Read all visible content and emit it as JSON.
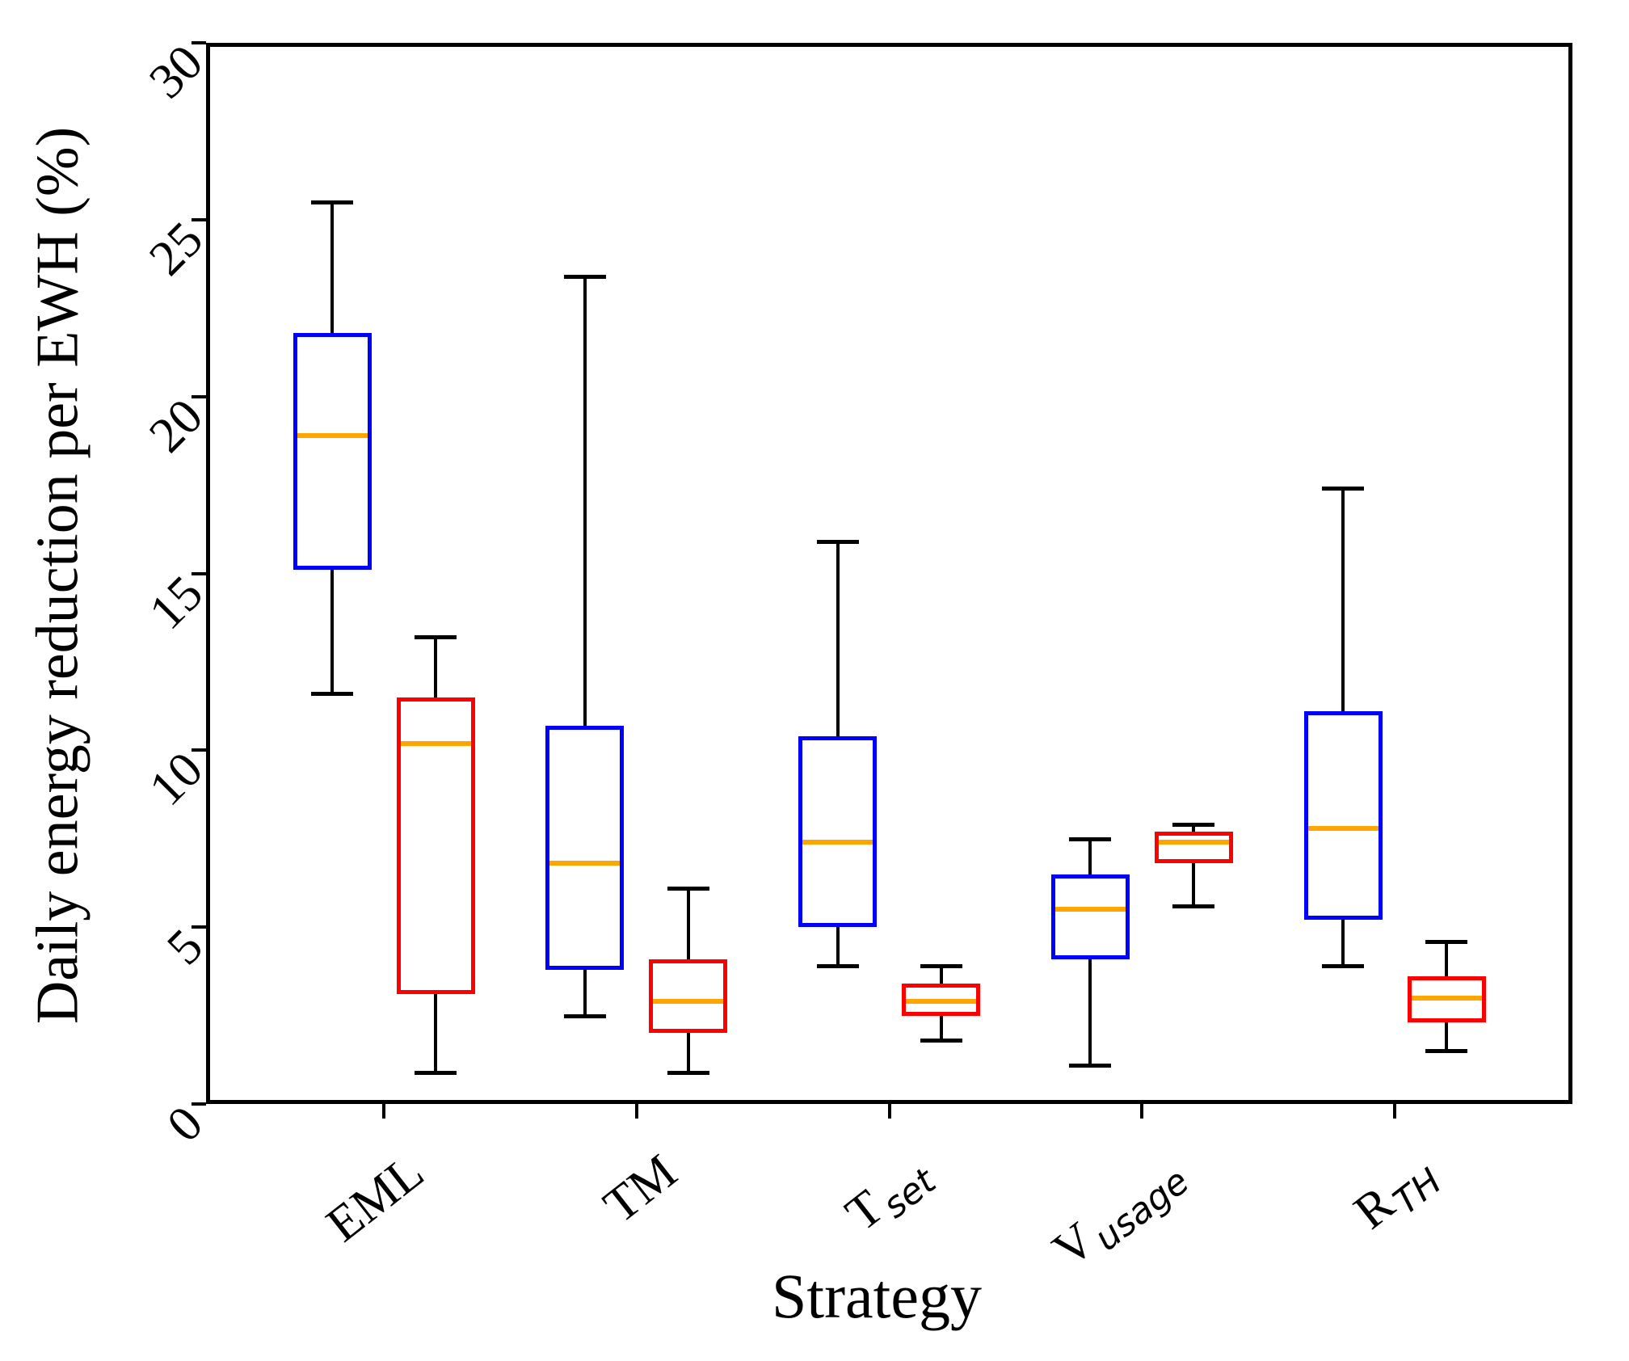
{
  "figure": {
    "background": "#FFFFFF",
    "axis_color": "#000000"
  },
  "chart_data": {
    "type": "boxplot",
    "title": "",
    "xlabel": "Strategy",
    "ylabel": "Daily energy reduction per EWH (%)",
    "ylim": [
      0,
      30
    ],
    "yticks": [
      0,
      5,
      10,
      15,
      20,
      25,
      30
    ],
    "grid": false,
    "legend": "none",
    "tick_label_rotation_deg": 45,
    "categories": [
      {
        "main": "EML",
        "sub": ""
      },
      {
        "main": "TM",
        "sub": ""
      },
      {
        "main": "T",
        "sub": "set"
      },
      {
        "main": "V",
        "sub": "usage"
      },
      {
        "main": "R",
        "sub": "TH"
      }
    ],
    "median_color": "#FFA500",
    "whisker_color": "#000000",
    "series": [
      {
        "name": "blue-boxes",
        "box_color": "#0000FF",
        "boxes": [
          {
            "whislo": 11.6,
            "q1": 15.1,
            "med": 18.9,
            "q3": 21.8,
            "whishi": 25.5
          },
          {
            "whislo": 2.5,
            "q1": 3.8,
            "med": 6.8,
            "q3": 10.7,
            "whishi": 23.4
          },
          {
            "whislo": 3.9,
            "q1": 5.0,
            "med": 7.4,
            "q3": 10.4,
            "whishi": 15.9
          },
          {
            "whislo": 1.1,
            "q1": 4.1,
            "med": 5.5,
            "q3": 6.5,
            "whishi": 7.5
          },
          {
            "whislo": 3.9,
            "q1": 5.2,
            "med": 7.8,
            "q3": 11.1,
            "whishi": 17.4
          }
        ]
      },
      {
        "name": "red-boxes",
        "box_color": "#FF0000",
        "boxes": [
          {
            "whislo": 0.9,
            "q1": 3.1,
            "med": 10.2,
            "q3": 11.5,
            "whishi": 13.2
          },
          {
            "whislo": 0.9,
            "q1": 2.0,
            "med": 2.9,
            "q3": 4.1,
            "whishi": 6.1
          },
          {
            "whislo": 1.8,
            "q1": 2.5,
            "med": 2.9,
            "q3": 3.4,
            "whishi": 3.9
          },
          {
            "whislo": 5.6,
            "q1": 6.8,
            "med": 7.4,
            "q3": 7.7,
            "whishi": 7.9
          },
          {
            "whislo": 1.5,
            "q1": 2.3,
            "med": 3.0,
            "q3": 3.6,
            "whishi": 4.6
          }
        ]
      }
    ]
  }
}
